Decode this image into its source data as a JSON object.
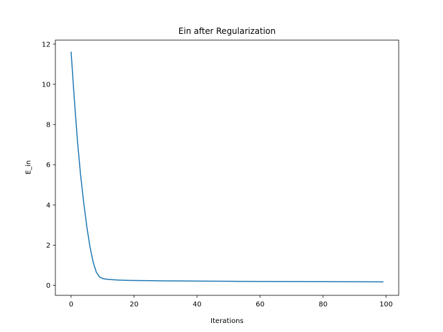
{
  "chart_data": {
    "type": "line",
    "title": "Ein after Regularization",
    "xlabel": "Iterations",
    "ylabel": "E_in",
    "xlim": [
      -5,
      104
    ],
    "ylim": [
      -0.5,
      12.2
    ],
    "xticks": [
      0,
      20,
      40,
      60,
      80,
      100
    ],
    "yticks": [
      0,
      2,
      4,
      6,
      8,
      10,
      12
    ],
    "grid": false,
    "legend": "none",
    "series": [
      {
        "color": "#1f77b4",
        "x": [
          0,
          1,
          2,
          3,
          4,
          5,
          6,
          7,
          8,
          9,
          10,
          11,
          12,
          13,
          14,
          15,
          17,
          20,
          25,
          30,
          40,
          50,
          60,
          70,
          80,
          90,
          99
        ],
        "y": [
          11.6,
          9.3,
          7.2,
          5.5,
          4.1,
          2.9,
          1.9,
          1.15,
          0.65,
          0.42,
          0.34,
          0.31,
          0.29,
          0.28,
          0.27,
          0.26,
          0.25,
          0.24,
          0.23,
          0.22,
          0.21,
          0.2,
          0.19,
          0.185,
          0.18,
          0.175,
          0.17
        ]
      }
    ]
  }
}
